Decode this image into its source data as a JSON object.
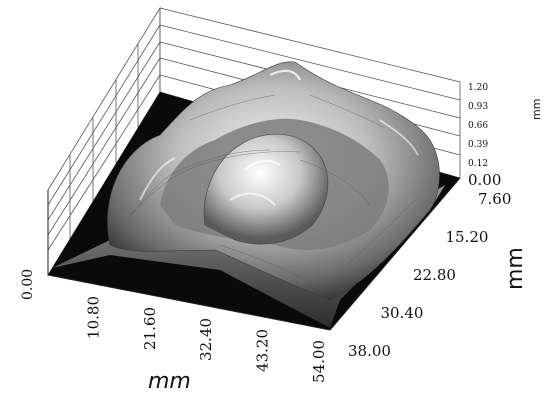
{
  "chart_data": {
    "type": "surface3d",
    "x_axis": {
      "label": "mm",
      "ticks": [
        "10.80",
        "21.60",
        "32.40",
        "43.20",
        "54.00"
      ],
      "range": [
        0,
        54.0
      ]
    },
    "y_axis": {
      "label": "mm",
      "ticks": [
        "7.60",
        "15.20",
        "22.80",
        "30.40",
        "38.00"
      ],
      "range": [
        0,
        38.0
      ]
    },
    "z_axis": {
      "label": "mm",
      "ticks": [
        "0.00",
        "0.12",
        "0.39",
        "0.66",
        "0.93",
        "1.20"
      ],
      "range": [
        0,
        1.2
      ]
    },
    "corner_label": "0.00",
    "colormap": "grayscale"
  }
}
